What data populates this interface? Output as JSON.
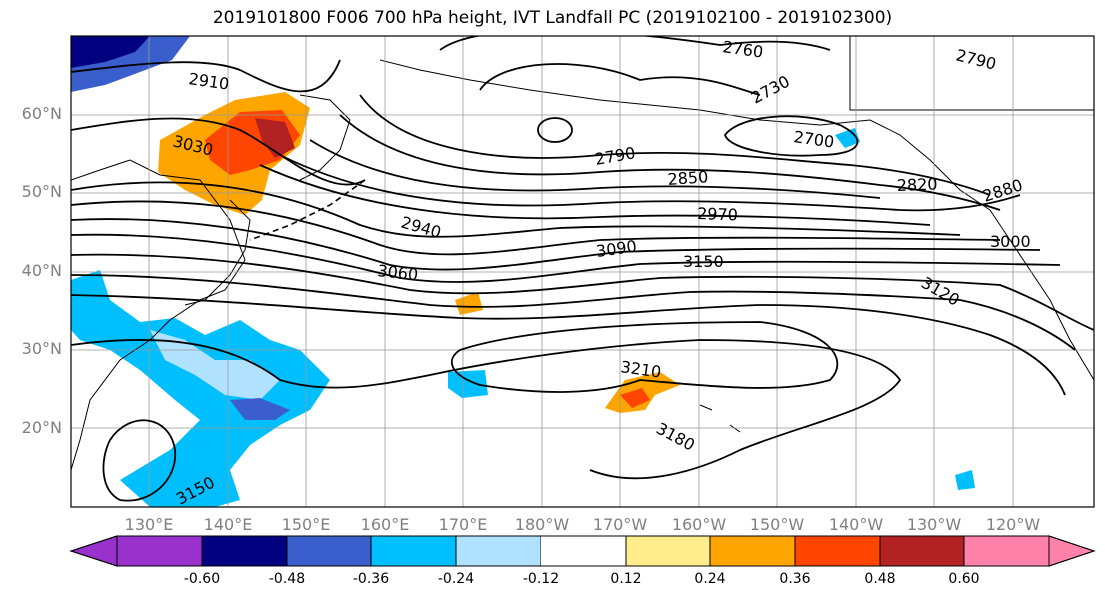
{
  "title": "2019101800 F006 700 hPa height, IVT Landfall PC (2019102100 - 2019102300)",
  "lat_labels": [
    "60°N",
    "50°N",
    "40°N",
    "30°N",
    "20°N"
  ],
  "lon_labels": [
    "130°E",
    "140°E",
    "150°E",
    "160°E",
    "170°E",
    "180°W",
    "170°W",
    "160°W",
    "150°W",
    "140°W",
    "130°W",
    "120°W"
  ],
  "contour_labels": [
    "2910",
    "3030",
    "2760",
    "2790",
    "2730",
    "2700",
    "2790",
    "2850",
    "2820",
    "2880",
    "2970",
    "2940",
    "3000",
    "3060",
    "3090",
    "3150",
    "3120",
    "3210",
    "3180",
    "3150"
  ],
  "colorbar": {
    "colors": [
      "#9932cc",
      "#000080",
      "#3a5fcd",
      "#00bfff",
      "#b0e2ff",
      "#ffffff",
      "#ffec8b",
      "#ffa500",
      "#ff4500",
      "#b22222",
      "#ff82ab"
    ],
    "tick_labels": [
      "-0.60",
      "-0.48",
      "-0.36",
      "-0.24",
      "-0.12",
      "0.12",
      "0.24",
      "0.36",
      "0.48",
      "0.60"
    ]
  }
}
